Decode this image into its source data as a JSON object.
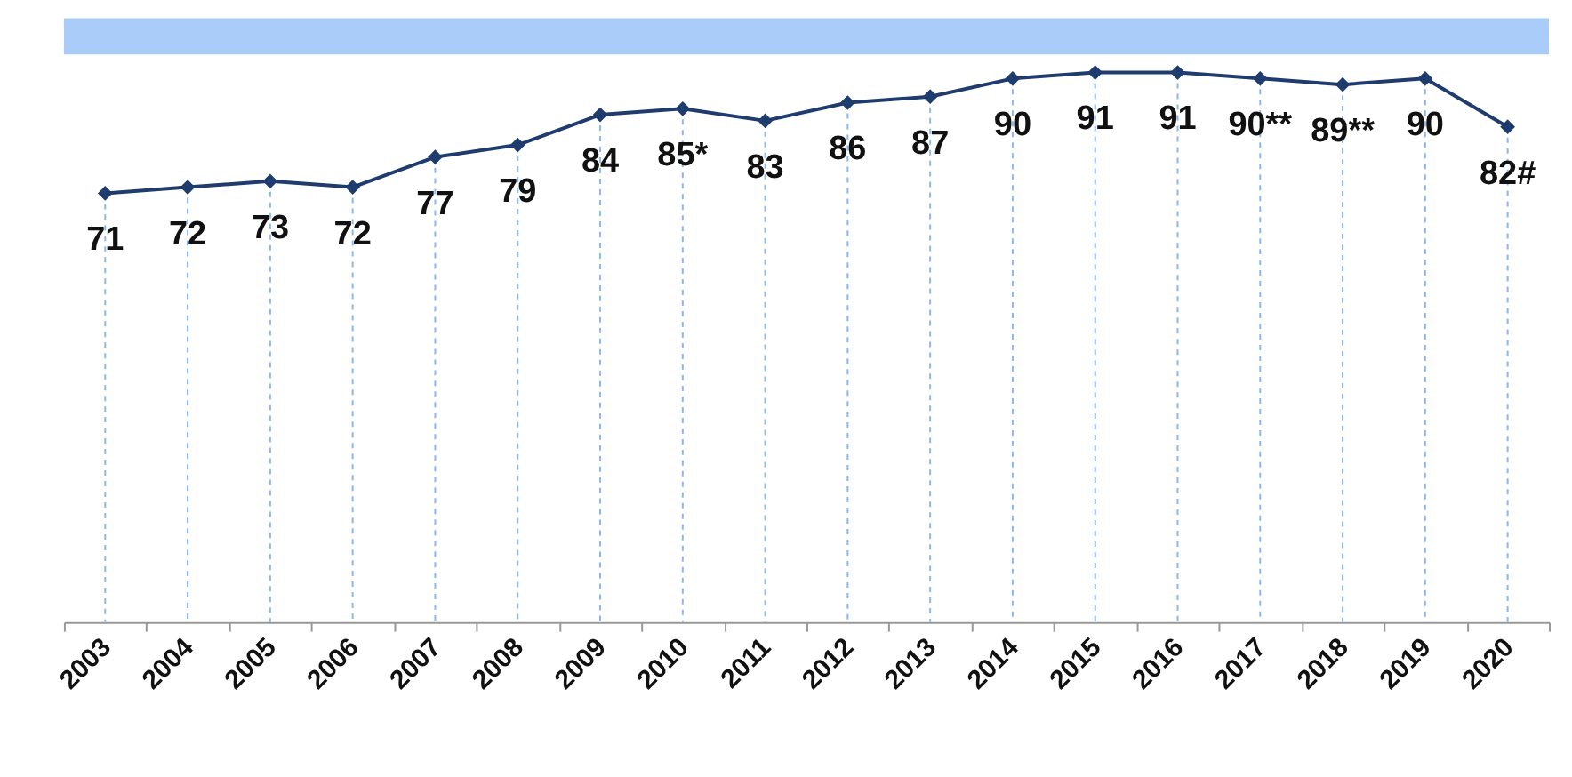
{
  "chart_data": {
    "type": "line",
    "categories": [
      "2003",
      "2004",
      "2005",
      "2006",
      "2007",
      "2008",
      "2009",
      "2010",
      "2011",
      "2012",
      "2013",
      "2014",
      "2015",
      "2016",
      "2017",
      "2018",
      "2019",
      "2020"
    ],
    "series": [
      {
        "color": "#1f3c6e",
        "values": [
          71,
          72,
          73,
          72,
          77,
          79,
          84,
          85,
          83,
          86,
          87,
          90,
          91,
          91,
          90,
          89,
          90,
          82
        ],
        "value_labels": [
          "71",
          "72",
          "73",
          "72",
          "77",
          "79",
          "84",
          "85*",
          "83",
          "86",
          "87",
          "90",
          "91",
          "91",
          "90**",
          "89**",
          "90",
          "82#"
        ]
      }
    ],
    "tick_labels": "x",
    "marker": "diamond",
    "line_style": "solid",
    "grid": "x",
    "bands": [
      {
        "axis": "y",
        "from": 94,
        "to": 100,
        "color": "#aaccf8"
      }
    ]
  }
}
